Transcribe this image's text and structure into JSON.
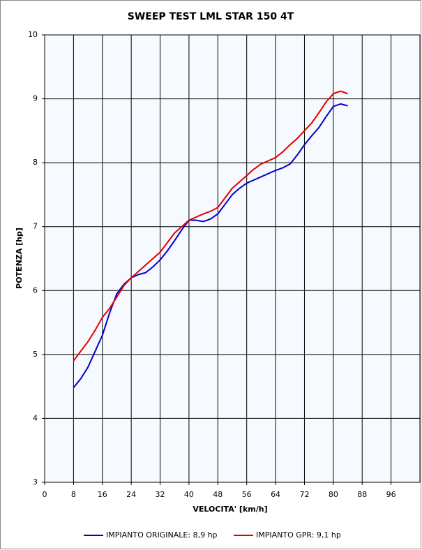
{
  "chart_data": {
    "type": "line",
    "title": "SWEEP TEST LML STAR 150 4T",
    "x_label": "VELOCITA' [km/h]",
    "y_label": "POTENZA [hp]",
    "x": [
      8,
      10,
      12,
      14,
      16,
      18,
      20,
      22,
      24,
      26,
      28,
      30,
      32,
      34,
      36,
      38,
      40,
      42,
      44,
      46,
      48,
      50,
      52,
      54,
      56,
      58,
      60,
      62,
      64,
      66,
      68,
      70,
      72,
      74,
      76,
      78,
      80,
      82,
      84
    ],
    "series": [
      {
        "name": "IMPIANTO ORIGINALE: 8,9 hp",
        "color": "#0000cc",
        "values": [
          4.48,
          4.62,
          4.8,
          5.05,
          5.3,
          5.65,
          5.95,
          6.1,
          6.2,
          6.25,
          6.28,
          6.37,
          6.48,
          6.62,
          6.78,
          6.95,
          7.1,
          7.1,
          7.08,
          7.12,
          7.2,
          7.35,
          7.5,
          7.6,
          7.68,
          7.73,
          7.78,
          7.83,
          7.88,
          7.92,
          7.98,
          8.12,
          8.28,
          8.42,
          8.55,
          8.72,
          8.88,
          8.92,
          8.89
        ]
      },
      {
        "name": "IMPIANTO GPR: 9,1 hp",
        "color": "#e00000",
        "values": [
          4.9,
          5.05,
          5.2,
          5.38,
          5.58,
          5.72,
          5.9,
          6.08,
          6.2,
          6.3,
          6.4,
          6.5,
          6.6,
          6.75,
          6.9,
          7.0,
          7.1,
          7.15,
          7.2,
          7.24,
          7.3,
          7.45,
          7.6,
          7.7,
          7.8,
          7.9,
          7.98,
          8.03,
          8.08,
          8.17,
          8.28,
          8.38,
          8.5,
          8.62,
          8.78,
          8.95,
          9.08,
          9.12,
          9.08
        ]
      }
    ],
    "xlim": [
      0,
      104
    ],
    "xticks": [
      0,
      8,
      16,
      24,
      32,
      40,
      48,
      56,
      64,
      72,
      80,
      88,
      96
    ],
    "ylim": [
      3,
      10
    ],
    "yticks": [
      3,
      4,
      5,
      6,
      7,
      8,
      9,
      10
    ],
    "grid": true,
    "legend": "bottom"
  }
}
